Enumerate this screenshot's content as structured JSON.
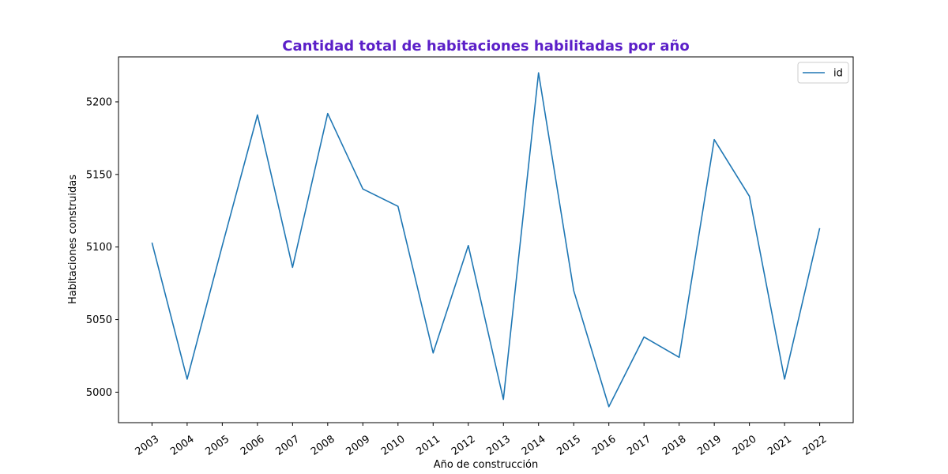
{
  "chart_data": {
    "type": "line",
    "title": "Cantidad total de habitaciones habilitadas por año",
    "xlabel": "Año de construcción",
    "ylabel": "Habitaciones construidas",
    "categories": [
      "2003",
      "2004",
      "2005",
      "2006",
      "2007",
      "2008",
      "2009",
      "2010",
      "2011",
      "2012",
      "2013",
      "2014",
      "2015",
      "2016",
      "2017",
      "2018",
      "2019",
      "2020",
      "2021",
      "2022"
    ],
    "series": [
      {
        "name": "id",
        "values": [
          5103,
          5009,
          5101,
          5191,
          5086,
          5192,
          5140,
          5128,
          5027,
          5101,
          4995,
          5220,
          5070,
          4990,
          5038,
          5024,
          5174,
          5135,
          5009,
          5113
        ]
      }
    ],
    "ylim": [
      4979,
      5231
    ],
    "yticks": [
      5000,
      5050,
      5100,
      5150,
      5200
    ],
    "grid": false,
    "legend": "top-right",
    "colors": {
      "line": "#1f77b4",
      "title": "#5b1fc8"
    }
  }
}
